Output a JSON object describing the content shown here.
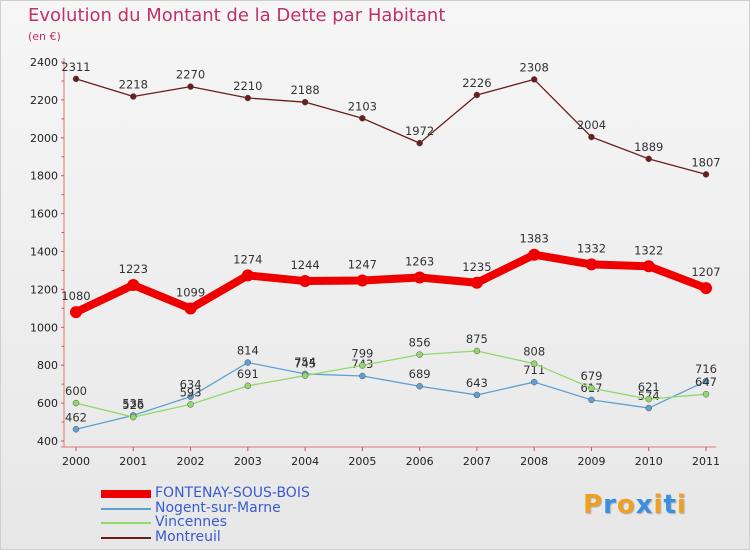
{
  "title": "Evolution du Montant de la Dette par Habitant",
  "subtitle": "(en €)",
  "chart_data": {
    "type": "line",
    "title": "Evolution du Montant de la Dette par Habitant",
    "subtitle": "(en €)",
    "xlabel": "",
    "ylabel": "",
    "x": [
      "2000",
      "2001",
      "2002",
      "2003",
      "2004",
      "2005",
      "2006",
      "2007",
      "2008",
      "2009",
      "2010",
      "2011"
    ],
    "ylim": [
      400,
      2400
    ],
    "yticks": [
      "400",
      "600",
      "800",
      "1000",
      "1200",
      "1400",
      "1600",
      "1800",
      "2000",
      "2200",
      "2400"
    ],
    "grid": false,
    "legend_position": "bottom-left",
    "series": [
      {
        "name": "FONTENAY-SOUS-BOIS",
        "color": "#ee0000",
        "emphasis": true,
        "values": [
          1080,
          1223,
          1099,
          1274,
          1244,
          1247,
          1263,
          1235,
          1383,
          1332,
          1322,
          1207
        ]
      },
      {
        "name": "Nogent-sur-Marne",
        "color": "#5fa0d0",
        "values": [
          462,
          535,
          634,
          814,
          754,
          743,
          689,
          643,
          711,
          617,
          574,
          716
        ]
      },
      {
        "name": "Vincennes",
        "color": "#92d86a",
        "values": [
          600,
          526,
          593,
          691,
          745,
          799,
          856,
          875,
          808,
          679,
          621,
          647
        ]
      },
      {
        "name": "Montreuil",
        "color": "#6b1e1e",
        "values": [
          2311,
          2218,
          2270,
          2210,
          2188,
          2103,
          1972,
          2226,
          2308,
          2004,
          1889,
          1807
        ]
      }
    ]
  },
  "brand": {
    "letters": [
      "P",
      "r",
      "o",
      "x",
      "i",
      "t",
      "i"
    ],
    "colors": [
      "#f0a020",
      "#3a8fe0",
      "#f0a020",
      "#3a8fe0",
      "#f0a020",
      "#3a8fe0",
      "#f0a020"
    ]
  }
}
